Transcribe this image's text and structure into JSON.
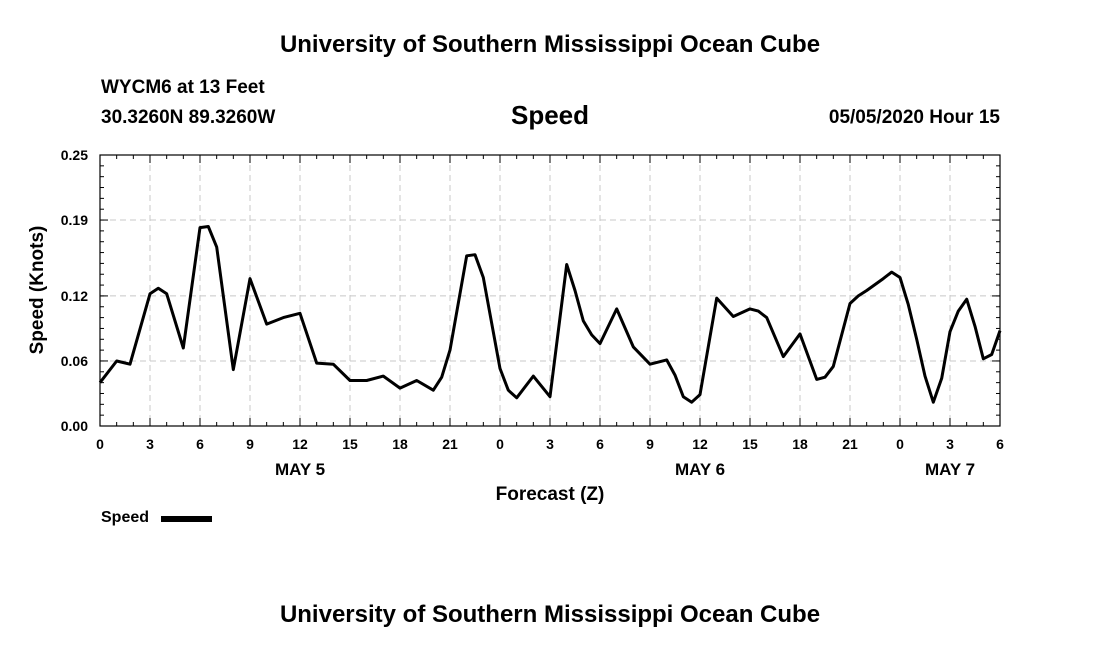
{
  "header": {
    "title": "University of Southern Mississippi Ocean Cube",
    "station": "WYCM6 at 13 Feet",
    "coords": "30.3260N 89.3260W",
    "variable": "Speed",
    "datetime": "05/05/2020 Hour 15"
  },
  "footer": {
    "title": "University of Southern Mississippi Ocean Cube"
  },
  "legend": {
    "label": "Speed"
  },
  "chart_data": {
    "type": "line",
    "title": "Speed",
    "xlabel": "Forecast (Z)",
    "ylabel": "Speed (Knots)",
    "x_unit": "hours from May 5 00Z",
    "xlim": [
      0,
      54
    ],
    "ylim": [
      0.0,
      0.25
    ],
    "y_ticks": [
      "0.00",
      "0.06",
      "0.12",
      "0.19",
      "0.25"
    ],
    "x_ticks": [
      {
        "x": 0,
        "label": "0"
      },
      {
        "x": 3,
        "label": "3"
      },
      {
        "x": 6,
        "label": "6"
      },
      {
        "x": 9,
        "label": "9"
      },
      {
        "x": 12,
        "label": "12"
      },
      {
        "x": 15,
        "label": "15"
      },
      {
        "x": 18,
        "label": "18"
      },
      {
        "x": 21,
        "label": "21"
      },
      {
        "x": 24,
        "label": "0"
      },
      {
        "x": 27,
        "label": "3"
      },
      {
        "x": 30,
        "label": "6"
      },
      {
        "x": 33,
        "label": "9"
      },
      {
        "x": 36,
        "label": "12"
      },
      {
        "x": 39,
        "label": "15"
      },
      {
        "x": 42,
        "label": "18"
      },
      {
        "x": 45,
        "label": "21"
      },
      {
        "x": 48,
        "label": "0"
      },
      {
        "x": 51,
        "label": "3"
      },
      {
        "x": 54,
        "label": "6"
      }
    ],
    "date_labels": [
      {
        "x": 12,
        "label": "MAY 5"
      },
      {
        "x": 36,
        "label": "MAY 6"
      },
      {
        "x": 51,
        "label": "MAY 7"
      }
    ],
    "grid": true,
    "legend_position": "bottom-left",
    "series": [
      {
        "name": "Speed",
        "color": "#000000",
        "points": [
          [
            0,
            0.04
          ],
          [
            1,
            0.06
          ],
          [
            1.8,
            0.057
          ],
          [
            3,
            0.122
          ],
          [
            3.5,
            0.127
          ],
          [
            4,
            0.122
          ],
          [
            5,
            0.072
          ],
          [
            6,
            0.183
          ],
          [
            6.5,
            0.184
          ],
          [
            7,
            0.165
          ],
          [
            8,
            0.052
          ],
          [
            9,
            0.136
          ],
          [
            10,
            0.094
          ],
          [
            11,
            0.1
          ],
          [
            12,
            0.104
          ],
          [
            13,
            0.058
          ],
          [
            14,
            0.057
          ],
          [
            15,
            0.042
          ],
          [
            16,
            0.042
          ],
          [
            17,
            0.046
          ],
          [
            18,
            0.035
          ],
          [
            19,
            0.042
          ],
          [
            20,
            0.033
          ],
          [
            20.5,
            0.045
          ],
          [
            21,
            0.07
          ],
          [
            22,
            0.157
          ],
          [
            22.5,
            0.158
          ],
          [
            23,
            0.137
          ],
          [
            24,
            0.053
          ],
          [
            24.5,
            0.033
          ],
          [
            25,
            0.026
          ],
          [
            26,
            0.046
          ],
          [
            27,
            0.027
          ],
          [
            28,
            0.149
          ],
          [
            28.5,
            0.125
          ],
          [
            29,
            0.097
          ],
          [
            29.5,
            0.084
          ],
          [
            30,
            0.076
          ],
          [
            31,
            0.108
          ],
          [
            32,
            0.073
          ],
          [
            33,
            0.057
          ],
          [
            34,
            0.061
          ],
          [
            34.5,
            0.047
          ],
          [
            35,
            0.027
          ],
          [
            35.5,
            0.022
          ],
          [
            36,
            0.029
          ],
          [
            37,
            0.118
          ],
          [
            38,
            0.101
          ],
          [
            39,
            0.108
          ],
          [
            39.5,
            0.106
          ],
          [
            40,
            0.1
          ],
          [
            41,
            0.064
          ],
          [
            42,
            0.085
          ],
          [
            43,
            0.043
          ],
          [
            43.5,
            0.045
          ],
          [
            44,
            0.055
          ],
          [
            45,
            0.113
          ],
          [
            45.5,
            0.12
          ],
          [
            46,
            0.125
          ],
          [
            47,
            0.136
          ],
          [
            47.5,
            0.142
          ],
          [
            48,
            0.137
          ],
          [
            48.5,
            0.112
          ],
          [
            49,
            0.08
          ],
          [
            49.5,
            0.046
          ],
          [
            50,
            0.022
          ],
          [
            50.5,
            0.044
          ],
          [
            51,
            0.087
          ],
          [
            51.5,
            0.106
          ],
          [
            52,
            0.117
          ],
          [
            52.5,
            0.092
          ],
          [
            53,
            0.062
          ],
          [
            53.5,
            0.066
          ],
          [
            54,
            0.088
          ]
        ]
      }
    ]
  }
}
